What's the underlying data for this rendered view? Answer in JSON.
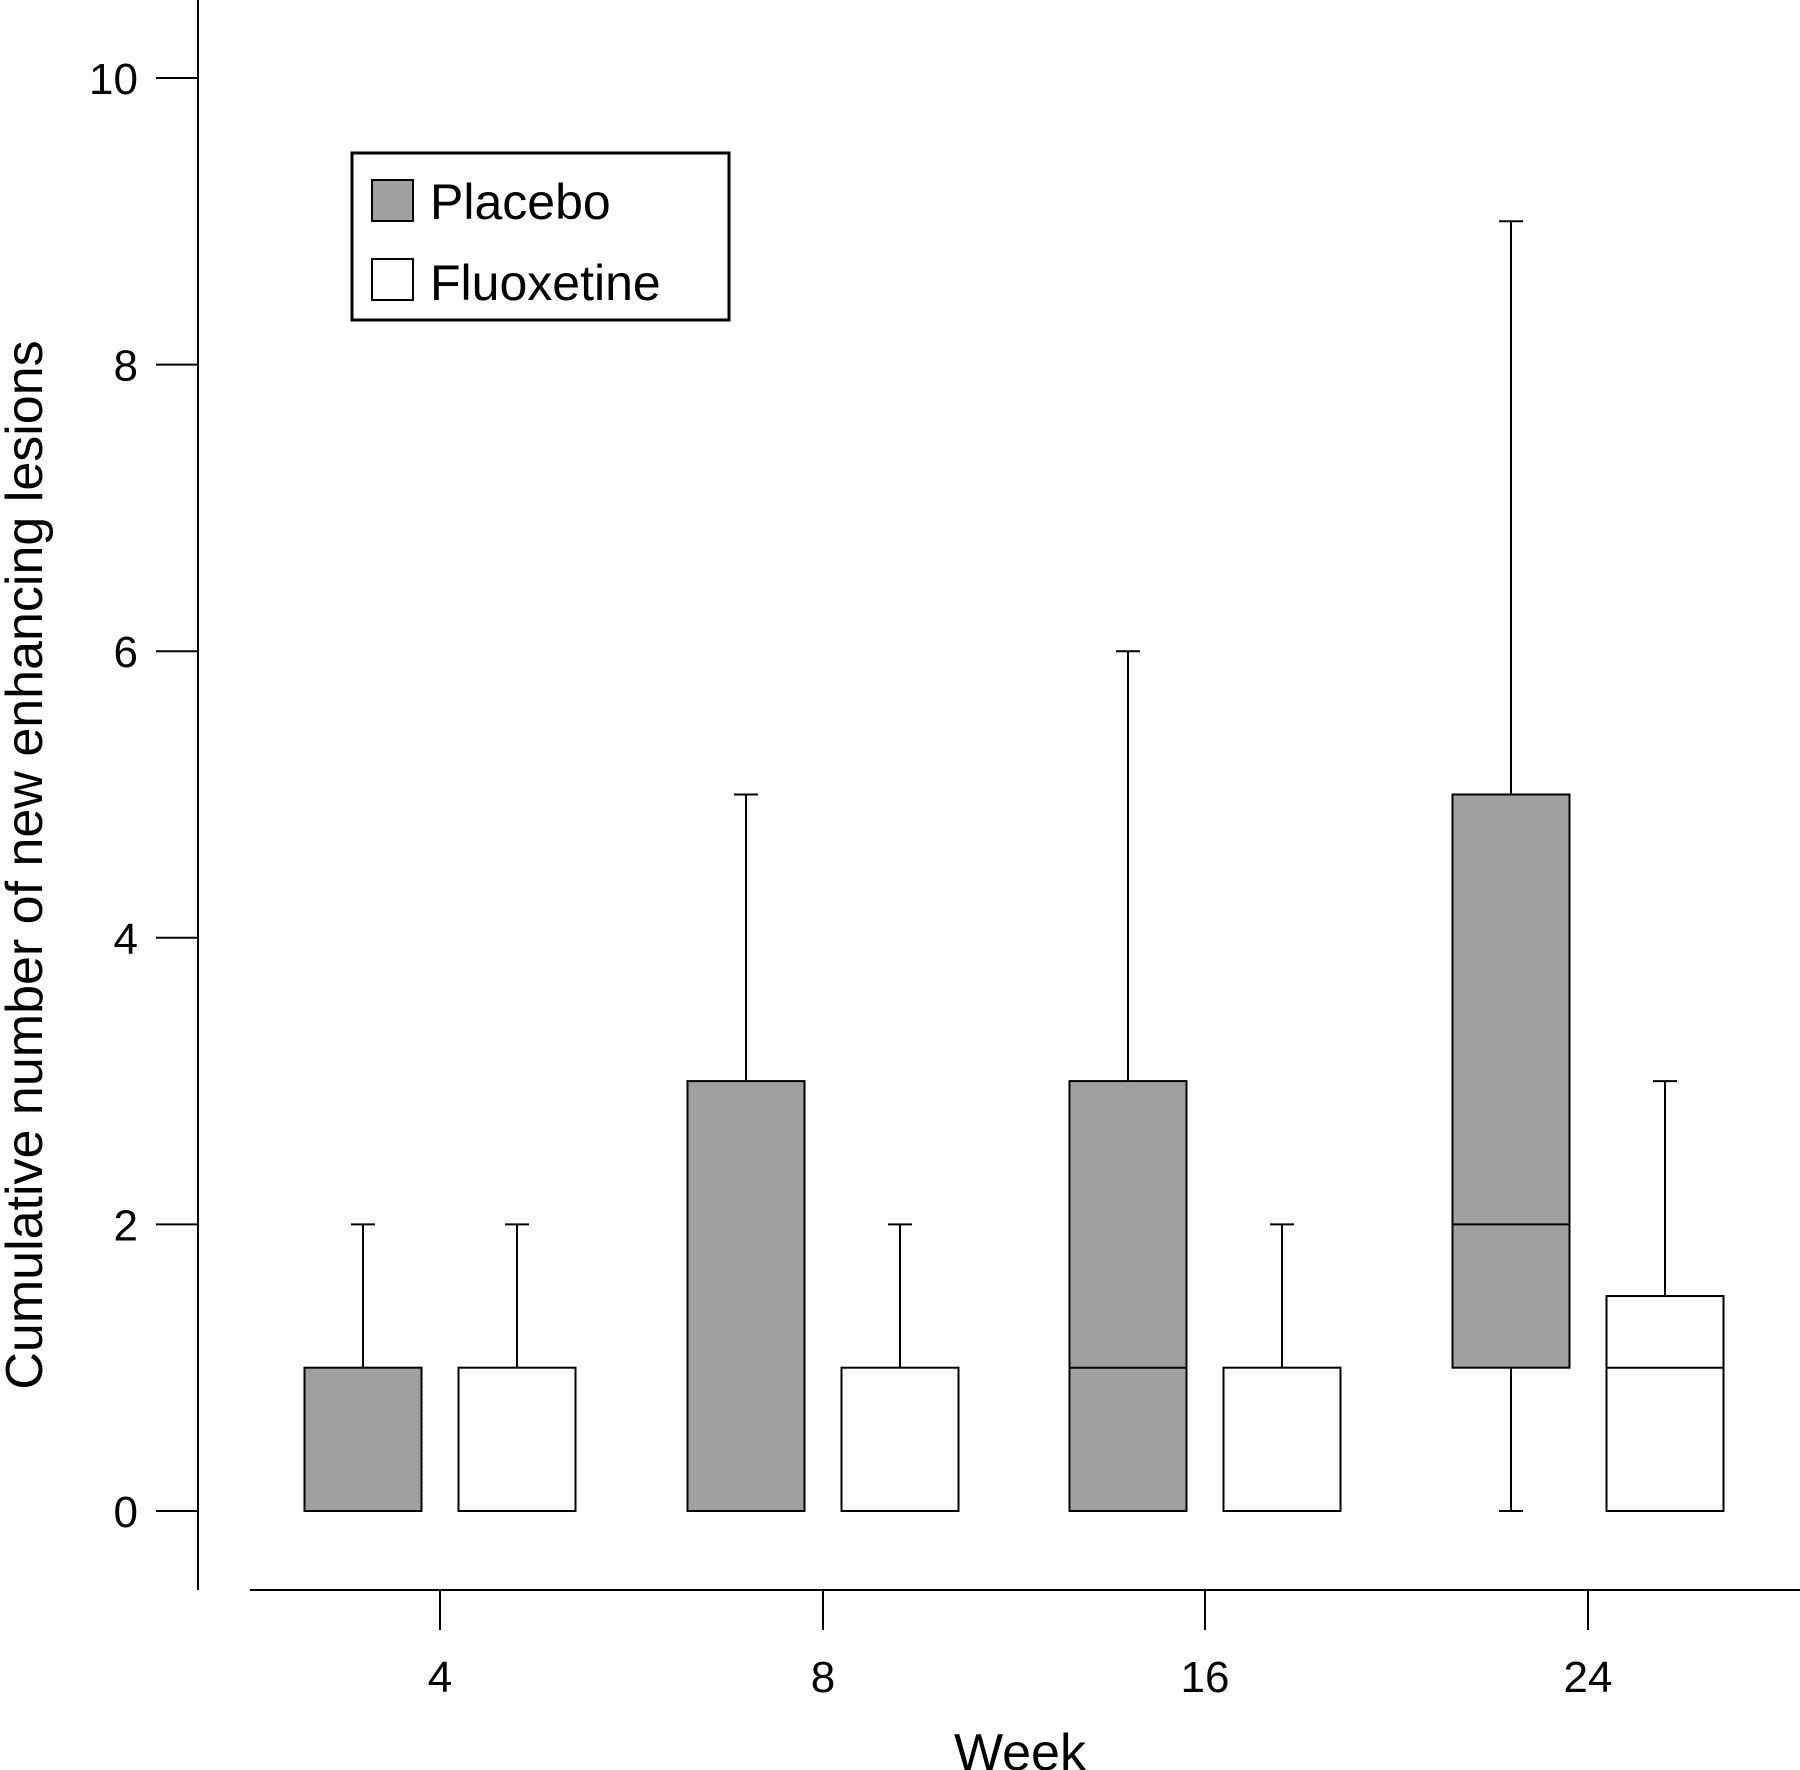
{
  "chart_data": {
    "type": "box",
    "xlabel": "Week",
    "ylabel": "Cumulative number of new enhancing lesions",
    "ylim": [
      0,
      10
    ],
    "yticks": [
      "0",
      "2",
      "4",
      "6",
      "8",
      "10"
    ],
    "categories": [
      "4",
      "8",
      "16",
      "24"
    ],
    "legend_position": "top-left",
    "series": [
      {
        "name": "Placebo",
        "color": "#a0a0a0",
        "boxes": [
          {
            "min": 0,
            "q1": 0,
            "median": 0,
            "q3": 1,
            "max": 2
          },
          {
            "min": 0,
            "q1": 0,
            "median": 0,
            "q3": 3,
            "max": 5
          },
          {
            "min": 0,
            "q1": 0,
            "median": 1,
            "q3": 3,
            "max": 6
          },
          {
            "min": 0,
            "q1": 1,
            "median": 2,
            "q3": 5,
            "max": 9
          }
        ]
      },
      {
        "name": "Fluoxetine",
        "color": "#ffffff",
        "boxes": [
          {
            "min": 0,
            "q1": 0,
            "median": 0,
            "q3": 1,
            "max": 2
          },
          {
            "min": 0,
            "q1": 0,
            "median": 0,
            "q3": 1,
            "max": 2
          },
          {
            "min": 0,
            "q1": 0,
            "median": 0,
            "q3": 1,
            "max": 2
          },
          {
            "min": 0,
            "q1": 0,
            "median": 1,
            "q3": 1.5,
            "max": 3
          }
        ]
      }
    ]
  }
}
